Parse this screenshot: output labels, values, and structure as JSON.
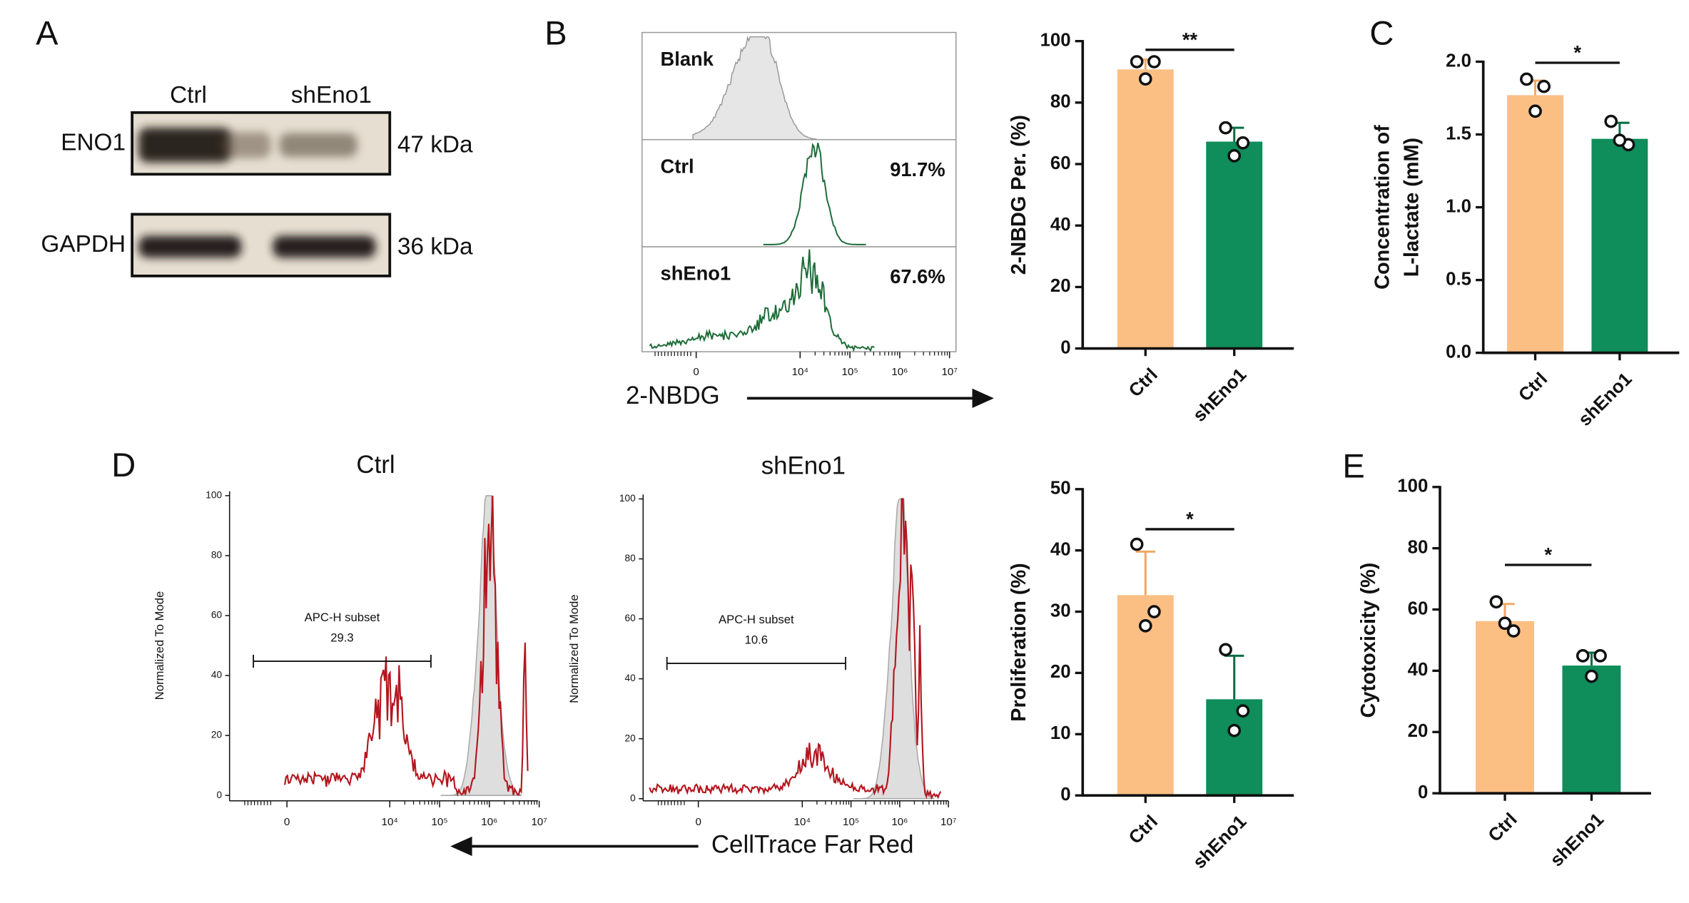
{
  "chart_data": [
    {
      "type": "blot",
      "panel": "A",
      "lanes": [
        "Ctrl",
        "shEno1"
      ],
      "rows": [
        {
          "name": "ENO1",
          "size": "47 kDa"
        },
        {
          "name": "GAPDH",
          "size": "36 kDa"
        }
      ]
    },
    {
      "type": "flow-stack",
      "panel": "B",
      "x_label": "2-NBDG",
      "color": "#1e6b38",
      "xticks": [
        0,
        {
          "value": 10000,
          "label": "10⁴"
        },
        {
          "value": 100000,
          "label": "10⁵"
        },
        {
          "value": 1000000,
          "label": "10⁶"
        },
        {
          "value": 10000000,
          "label": "10⁷"
        }
      ],
      "tracks": [
        {
          "name": "Blank"
        },
        {
          "name": "Ctrl",
          "value": 91.7,
          "value_label": "91.7%"
        },
        {
          "name": "shEno1",
          "value": 67.6,
          "value_label": "67.6%"
        }
      ]
    },
    {
      "type": "bar",
      "y_label": "2-NBDG Per. (%)",
      "categories": [
        "Ctrl",
        "shEno1"
      ],
      "values": [
        90.8,
        67.3
      ],
      "errors": [
        3.2,
        4.5
      ],
      "points": [
        [
          93.3,
          93.3,
          87.7
        ],
        [
          71.8,
          66.9,
          62.7
        ]
      ],
      "colors": [
        "#fbbf84",
        "#0f8d5a"
      ],
      "ylim": [
        0,
        100
      ],
      "yticks": [
        0,
        20,
        40,
        60,
        80,
        100
      ],
      "significance": "**"
    },
    {
      "type": "bar",
      "panel": "C",
      "y_label": [
        "Concentration of",
        "L-lactate (mM)"
      ],
      "categories": [
        "Ctrl",
        "shEno1"
      ],
      "values": [
        1.77,
        1.47
      ],
      "errors": [
        0.1,
        0.11
      ],
      "points": [
        [
          1.88,
          1.83,
          1.66
        ],
        [
          1.59,
          1.43,
          1.46
        ]
      ],
      "colors": [
        "#fbbf84",
        "#0f8d5a"
      ],
      "ylim": [
        0,
        2
      ],
      "yticks": [
        {
          "value": 0,
          "label": "0.0"
        },
        0.5,
        {
          "value": 1,
          "label": "1.0"
        },
        1.5,
        {
          "value": 2,
          "label": "2.0"
        }
      ],
      "significance": "*"
    },
    {
      "type": "flow-overlay",
      "panel": "D",
      "title": "Ctrl",
      "y_label": "Normalized To Mode",
      "gate_label": "APC-H subset",
      "value": 29.3,
      "ylim": [
        0,
        100
      ],
      "yticks": [
        0,
        20,
        40,
        60,
        80,
        100
      ],
      "xticks": [
        0,
        {
          "value": 10000,
          "label": "10⁴"
        },
        {
          "value": 100000,
          "label": "10⁵"
        },
        {
          "value": 1000000,
          "label": "10⁶"
        },
        {
          "value": 10000000,
          "label": "10⁷"
        }
      ]
    },
    {
      "type": "flow-overlay",
      "title": "shEno1",
      "y_label": "Normalized To Mode",
      "gate_label": "APC-H subset",
      "value": 10.6,
      "x_label": "CellTrace Far Red",
      "ylim": [
        0,
        100
      ],
      "yticks": [
        0,
        20,
        40,
        60,
        80,
        100
      ],
      "xticks": [
        0,
        {
          "value": 10000,
          "label": "10⁴"
        },
        {
          "value": 100000,
          "label": "10⁵"
        },
        {
          "value": 1000000,
          "label": "10⁶"
        },
        {
          "value": 10000000,
          "label": "10⁷"
        }
      ]
    },
    {
      "type": "bar",
      "y_label": "Proliferation (%)",
      "categories": [
        "Ctrl",
        "shEno1"
      ],
      "values": [
        32.7,
        15.7
      ],
      "errors": [
        7.1,
        7.1
      ],
      "points": [
        [
          41,
          30,
          27.7
        ],
        [
          23.8,
          13.8,
          10.6
        ]
      ],
      "colors": [
        "#fbbf84",
        "#0f8d5a"
      ],
      "ylim": [
        0,
        50
      ],
      "yticks": [
        0,
        10,
        20,
        30,
        40,
        50
      ],
      "significance": "*"
    },
    {
      "type": "bar",
      "panel": "E",
      "y_label": "Cytotoxicity (%)",
      "categories": [
        "Ctrl",
        "shEno1"
      ],
      "values": [
        56.2,
        41.7
      ],
      "errors": [
        5.6,
        4.2
      ],
      "points": [
        [
          62.5,
          53,
          55.5
        ],
        [
          44.9,
          44.9,
          38.2
        ]
      ],
      "colors": [
        "#fbbf84",
        "#0f8d5a"
      ],
      "ylim": [
        0,
        100
      ],
      "yticks": [
        0,
        20,
        40,
        60,
        80,
        100
      ],
      "significance": "*"
    }
  ]
}
